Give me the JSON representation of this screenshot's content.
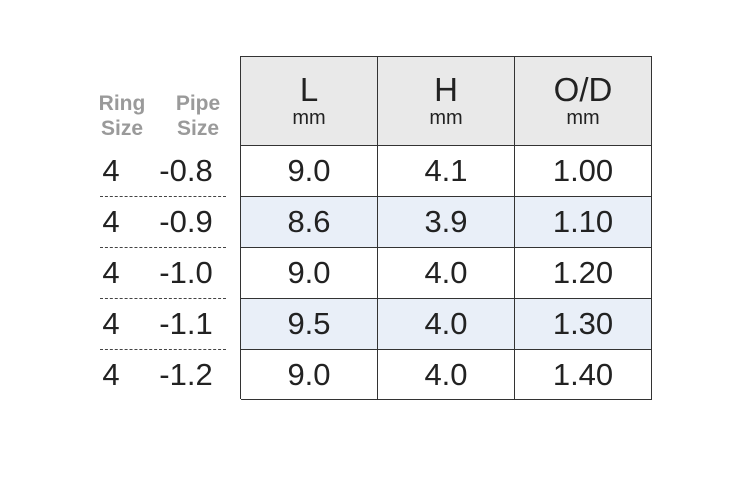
{
  "left_headers": [
    [
      "Ring",
      "Size"
    ],
    [
      "Pipe",
      "Size"
    ]
  ],
  "table": {
    "headers": [
      {
        "label": "L",
        "unit": "mm"
      },
      {
        "label": "H",
        "unit": "mm"
      },
      {
        "label": "O/D",
        "unit": "mm"
      }
    ],
    "rows": [
      {
        "ring": "4",
        "pipe": "-0.8",
        "cells": [
          "9.0",
          "4.1",
          "1.00"
        ]
      },
      {
        "ring": "4",
        "pipe": "-0.9",
        "cells": [
          "8.6",
          "3.9",
          "1.10"
        ]
      },
      {
        "ring": "4",
        "pipe": "-1.0",
        "cells": [
          "9.0",
          "4.0",
          "1.20"
        ]
      },
      {
        "ring": "4",
        "pipe": "-1.1",
        "cells": [
          "9.5",
          "4.0",
          "1.30"
        ]
      },
      {
        "ring": "4",
        "pipe": "-1.2",
        "cells": [
          "9.0",
          "4.0",
          "1.40"
        ]
      }
    ]
  }
}
